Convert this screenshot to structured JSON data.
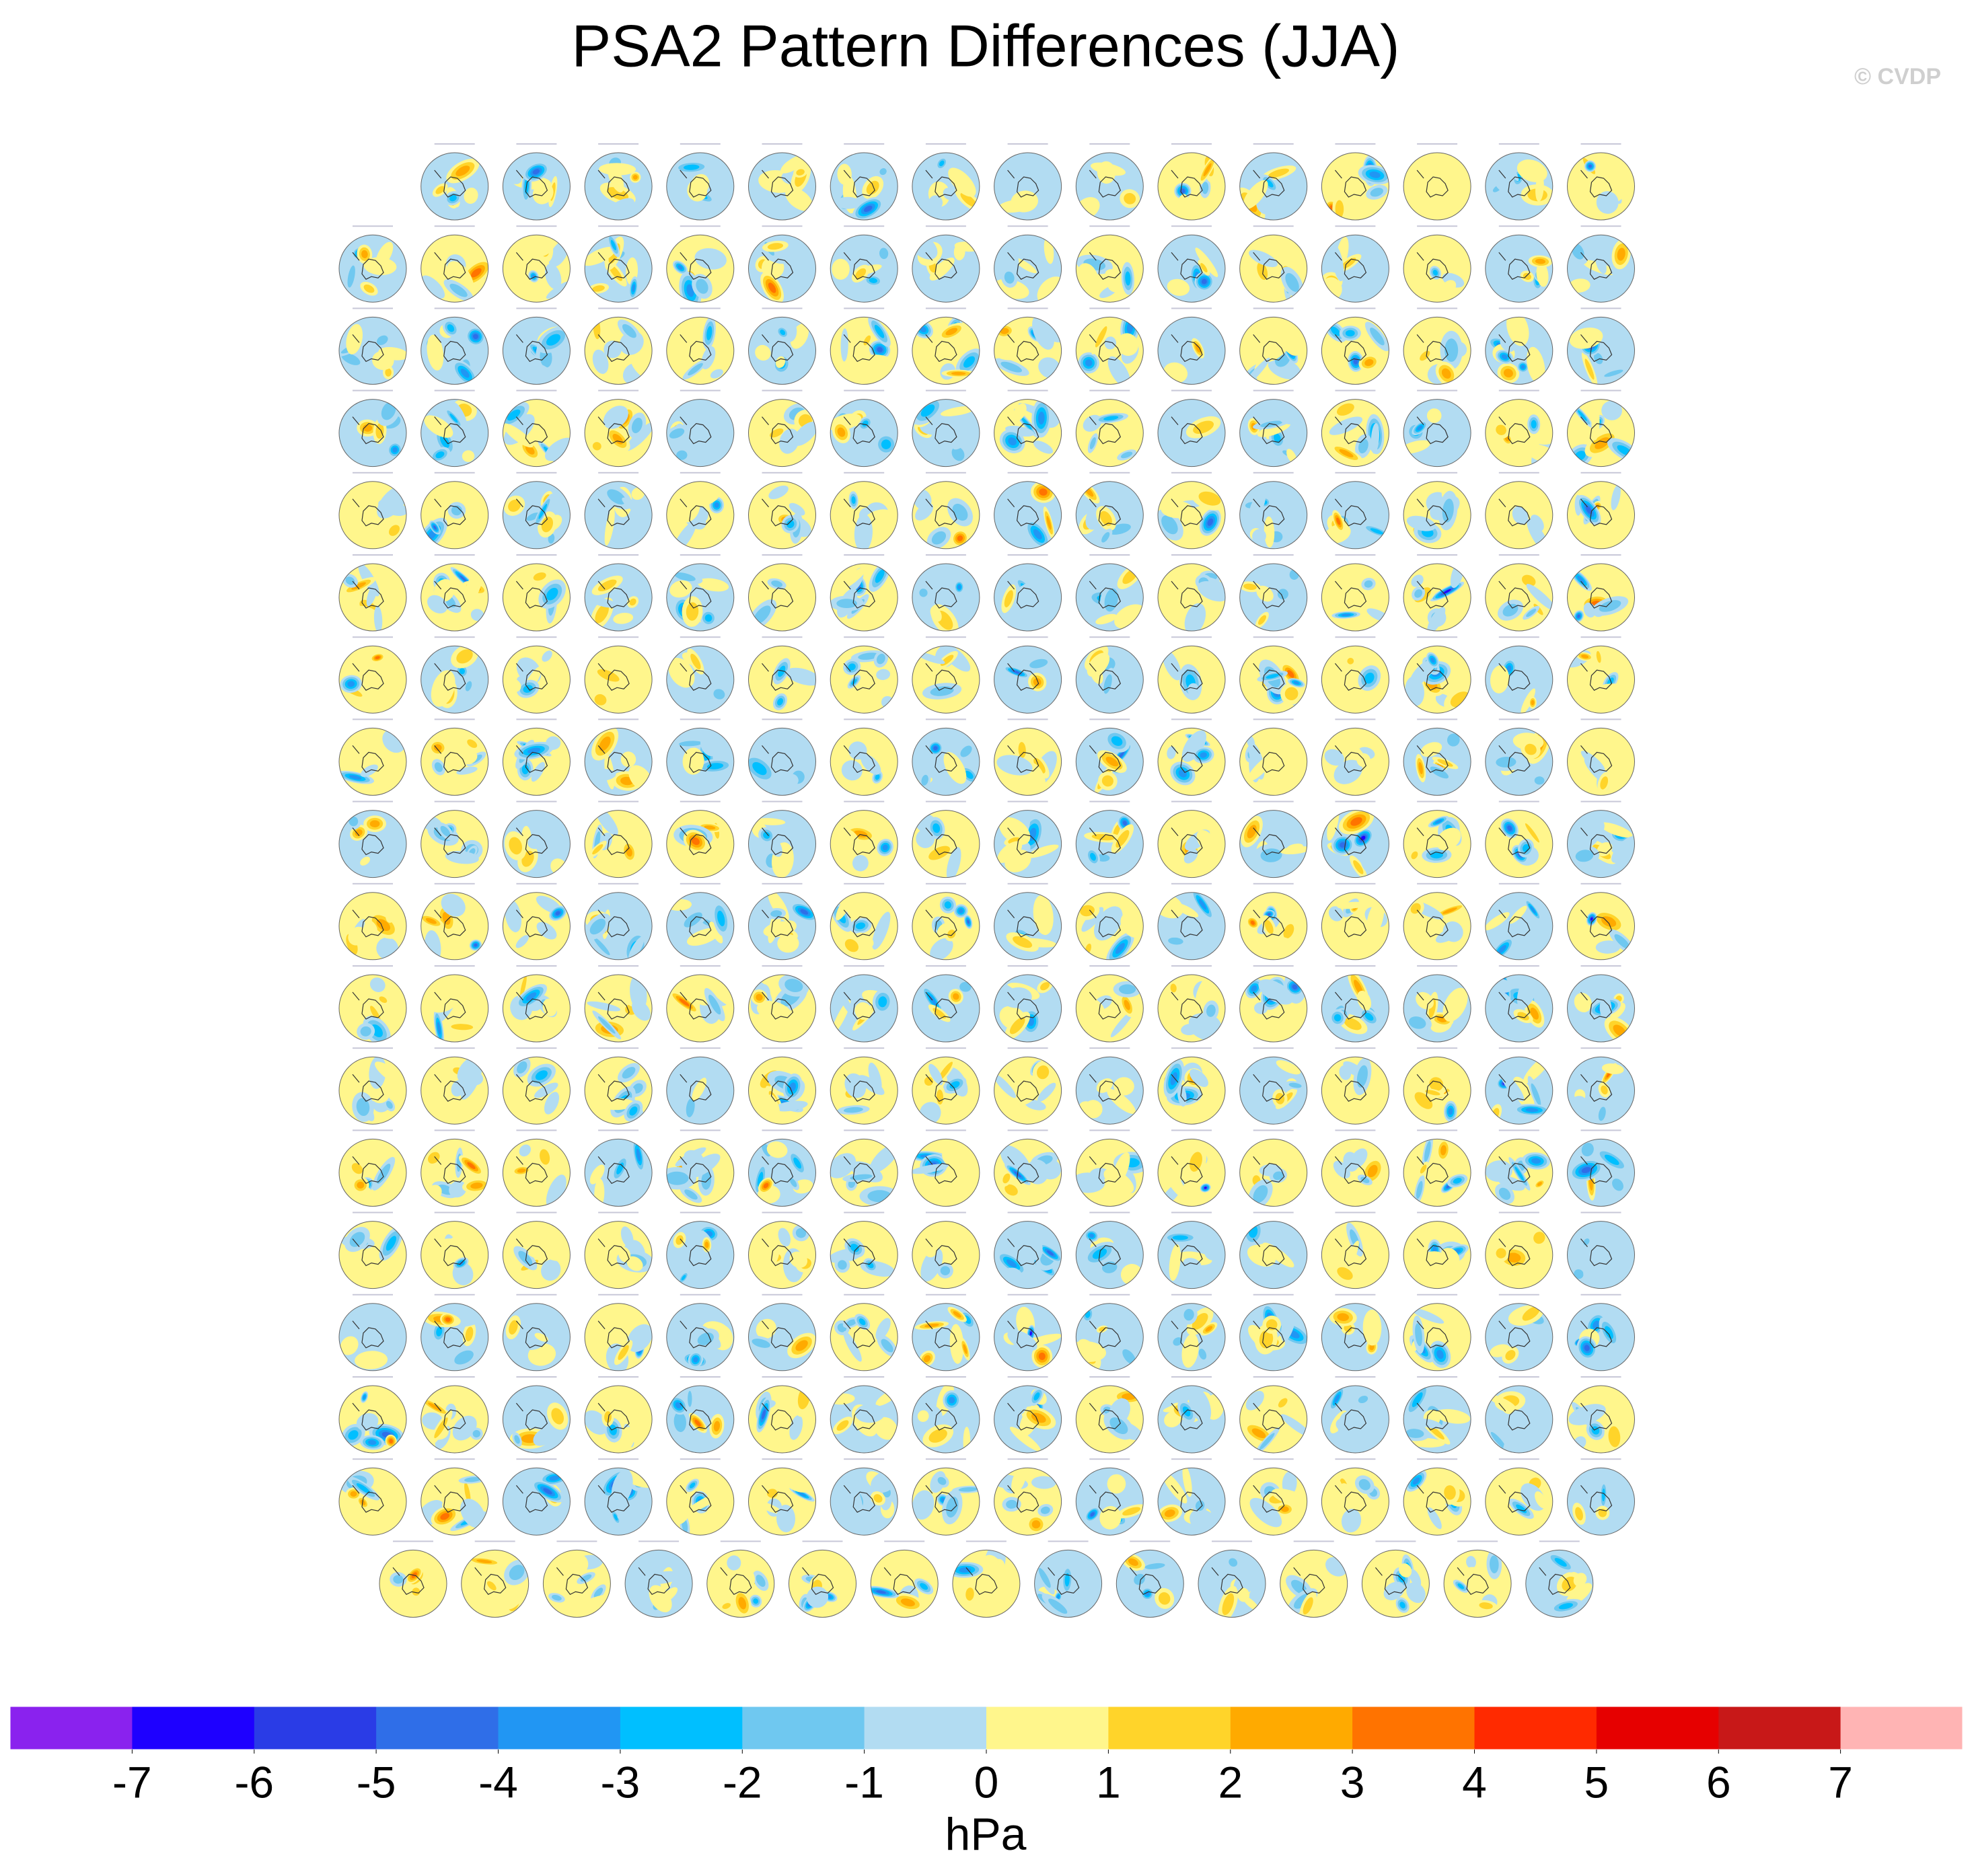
{
  "header": {
    "title": "PSA2 Pattern Differences (JJA)",
    "credit": "© CVDP"
  },
  "colorbar": {
    "levels": [
      -7,
      -6,
      -5,
      -4,
      -3,
      -2,
      -1,
      0,
      1,
      2,
      3,
      4,
      5,
      6,
      7
    ],
    "colors": [
      "#8a22ee",
      "#1e00ff",
      "#2a3ce6",
      "#2f6ee8",
      "#2196f3",
      "#00bfff",
      "#6fc8f0",
      "#b2dcf2",
      "#fff68c",
      "#ffd42a",
      "#ffaa00",
      "#ff7300",
      "#ff2a00",
      "#e60000",
      "#c81818",
      "#ffb4b4"
    ],
    "label": "hPa"
  }
}
